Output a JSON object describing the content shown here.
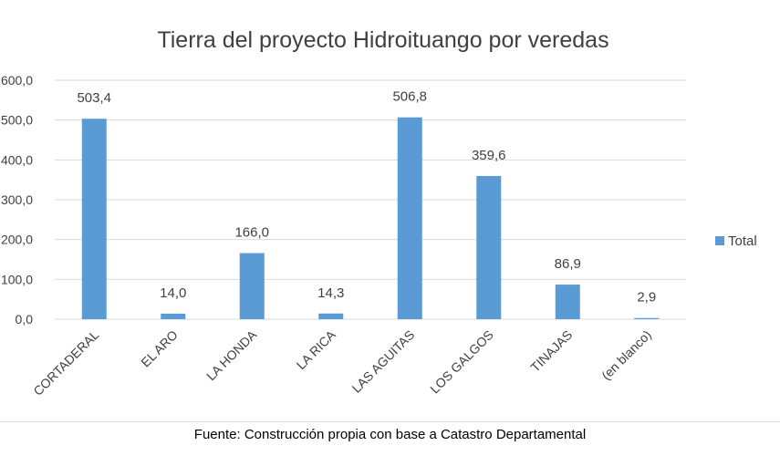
{
  "chart_data": {
    "type": "bar",
    "title": "Tierra del proyecto Hidroituango por veredas",
    "categories": [
      "CORTADERAL",
      "EL ARO",
      "LA HONDA",
      "LA RICA",
      "LAS AGUITAS",
      "LOS GALGOS",
      "TINAJAS",
      "(en blanco)"
    ],
    "series": [
      {
        "name": "Total",
        "values": [
          503.4,
          14.0,
          166.0,
          14.3,
          506.8,
          359.6,
          86.9,
          2.9
        ]
      }
    ],
    "data_labels": [
      "503,4",
      "14,0",
      "166,0",
      "14,3",
      "506,8",
      "359,6",
      "86,9",
      "2,9"
    ],
    "y_tick_labels": [
      "0,0",
      "100,0",
      "200,0",
      "300,0",
      "400,0",
      "500,0",
      "600,0"
    ],
    "ylim": [
      0,
      600
    ],
    "grid": true,
    "legend_position": "right",
    "bar_color": "#5b9bd5"
  },
  "footer": "Fuente: Construcción propia con base a Catastro Departamental"
}
